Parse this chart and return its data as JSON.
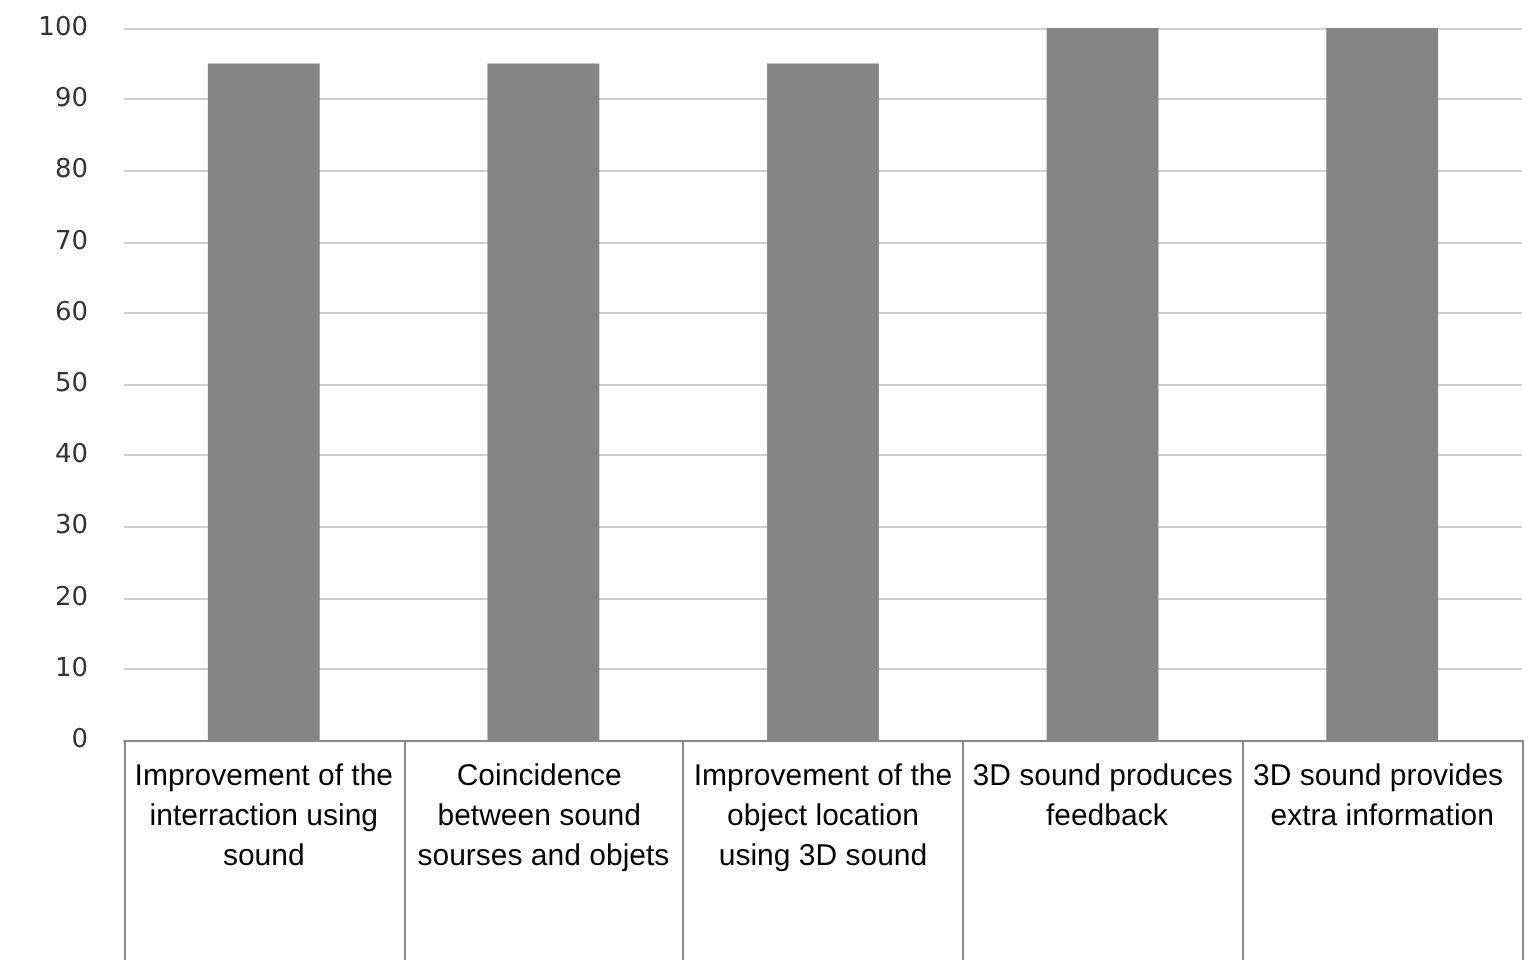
{
  "chart_data": {
    "type": "bar",
    "categories": [
      "Improvement of the interraction using sound",
      "Coincidence between sound sourses and objets",
      "Improvement of the object location using 3D sound",
      "3D sound produces feedback",
      "3D sound provides extra information"
    ],
    "values": [
      95,
      95,
      95,
      100,
      100
    ],
    "color": "#858585",
    "ylim": [
      0,
      100
    ],
    "yticks": [
      0,
      10,
      20,
      30,
      40,
      50,
      60,
      70,
      80,
      90,
      100
    ],
    "grid": "y"
  }
}
